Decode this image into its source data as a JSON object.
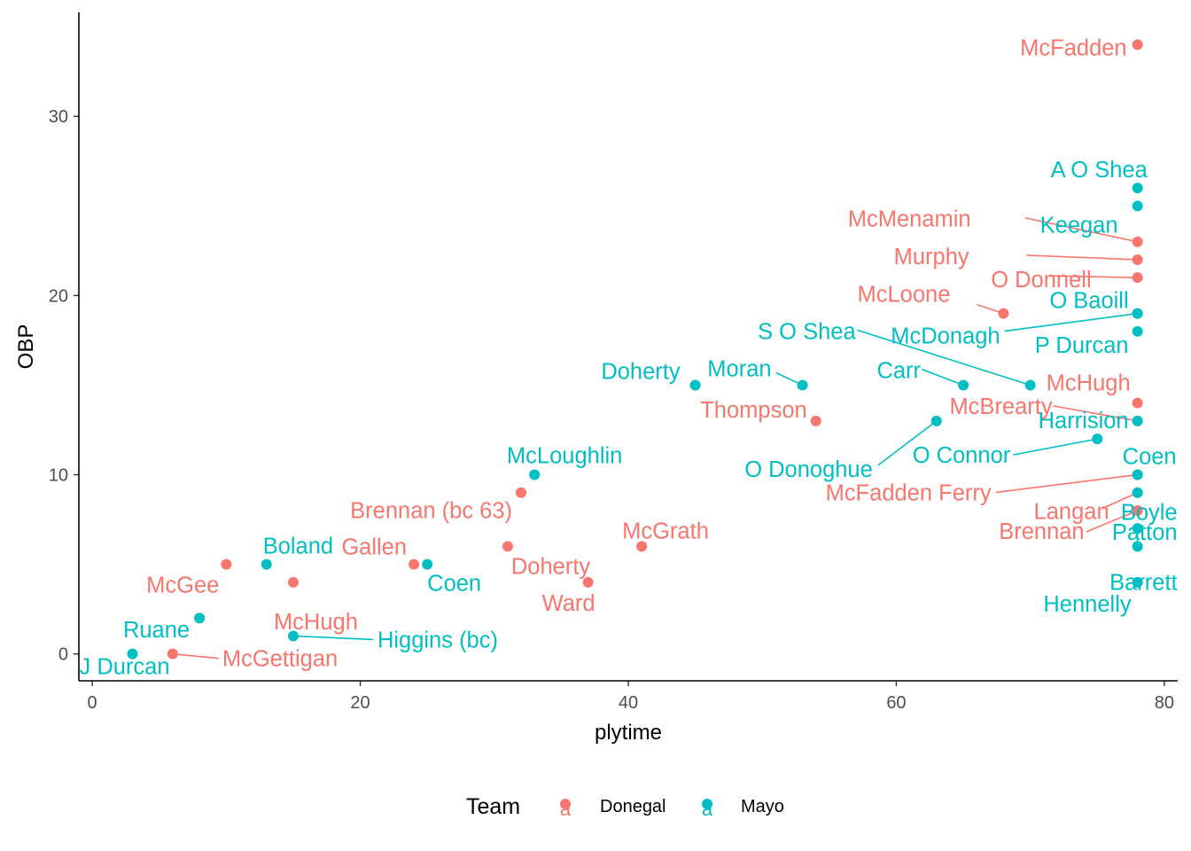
{
  "chart_data": {
    "type": "scatter",
    "xlabel": "plytime",
    "ylabel": "OBP",
    "xlim": [
      -1,
      81
    ],
    "ylim": [
      -1.5,
      35.8
    ],
    "x_ticks": [
      0,
      20,
      40,
      60,
      80
    ],
    "y_ticks": [
      0,
      10,
      20,
      30
    ],
    "legend": {
      "title": "Team",
      "position": "bottom",
      "key_glyph": "a",
      "entries": [
        {
          "name": "Donegal",
          "color": "#F8766D"
        },
        {
          "name": "Mayo",
          "color": "#00BFC4"
        }
      ]
    },
    "series": [
      {
        "name": "Donegal",
        "color": "#F8766D",
        "points": [
          {
            "label": "McFadden",
            "x": 78,
            "y": 34
          },
          {
            "label": "McMenamin",
            "x": 78,
            "y": 23
          },
          {
            "label": "Murphy",
            "x": 78,
            "y": 22
          },
          {
            "label": "O Donnell",
            "x": 78,
            "y": 21
          },
          {
            "label": "McLoone",
            "x": 68,
            "y": 19
          },
          {
            "label": "McHugh",
            "x": 78,
            "y": 14
          },
          {
            "label": "McBrearty",
            "x": 78,
            "y": 13
          },
          {
            "label": "Thompson",
            "x": 54,
            "y": 13
          },
          {
            "label": "McFadden Ferry",
            "x": 78,
            "y": 10
          },
          {
            "label": "Langan",
            "x": 78,
            "y": 9
          },
          {
            "label": "Brennan",
            "x": 78,
            "y": 8
          },
          {
            "label": "Brennan (bc 63)",
            "x": 32,
            "y": 9
          },
          {
            "label": "McGrath",
            "x": 41,
            "y": 6
          },
          {
            "label": "Doherty",
            "x": 31,
            "y": 6
          },
          {
            "label": "Gallen",
            "x": 24,
            "y": 5
          },
          {
            "label": "Ward",
            "x": 37,
            "y": 4
          },
          {
            "label": "McGee",
            "x": 10,
            "y": 5
          },
          {
            "label": "McHugh",
            "x": 15,
            "y": 4
          },
          {
            "label": "McGettigan",
            "x": 6,
            "y": 0
          }
        ]
      },
      {
        "name": "Mayo",
        "color": "#00BFC4",
        "points": [
          {
            "label": "A O Shea",
            "x": 78,
            "y": 26
          },
          {
            "label": "Keegan",
            "x": 78,
            "y": 25
          },
          {
            "label": "O Baoill",
            "x": 78,
            "y": 19
          },
          {
            "label": "McDonagh",
            "x": 78,
            "y": 19
          },
          {
            "label": "P Durcan",
            "x": 78,
            "y": 18
          },
          {
            "label": "S O Shea",
            "x": 70,
            "y": 15
          },
          {
            "label": "Carr",
            "x": 65,
            "y": 15
          },
          {
            "label": "Moran",
            "x": 53,
            "y": 15
          },
          {
            "label": "Doherty",
            "x": 45,
            "y": 15
          },
          {
            "label": "O Donoghue",
            "x": 63,
            "y": 13
          },
          {
            "label": "Harrision",
            "x": 78,
            "y": 13
          },
          {
            "label": "O Connor",
            "x": 75,
            "y": 12
          },
          {
            "label": "Coen",
            "x": 78,
            "y": 10
          },
          {
            "label": "Boyle",
            "x": 78,
            "y": 9
          },
          {
            "label": "Patton",
            "x": 78,
            "y": 7
          },
          {
            "label": "Barrett",
            "x": 78,
            "y": 6
          },
          {
            "label": "Hennelly",
            "x": 78,
            "y": 4
          },
          {
            "label": "McLoughlin",
            "x": 33,
            "y": 10
          },
          {
            "label": "Boland",
            "x": 13,
            "y": 5
          },
          {
            "label": "Coen",
            "x": 25,
            "y": 5
          },
          {
            "label": "Ruane",
            "x": 8,
            "y": 2
          },
          {
            "label": "Higgins (bc)",
            "x": 15,
            "y": 1
          },
          {
            "label": "J Durcan",
            "x": 3,
            "y": 0
          }
        ]
      }
    ]
  }
}
